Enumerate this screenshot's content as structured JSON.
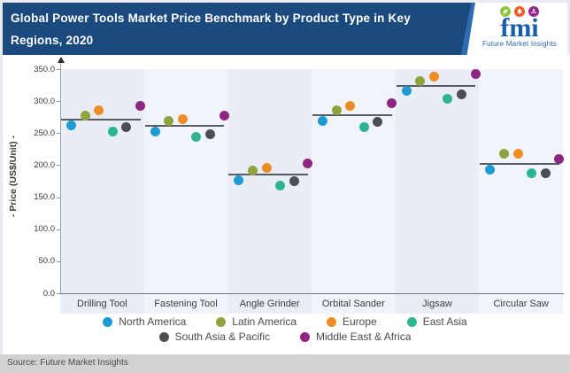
{
  "header": {
    "title": "Global Power Tools Market Price Benchmark by Product Type in Key Regions, 2020"
  },
  "logo": {
    "text": "fmi",
    "subtext": "Future Market Insights",
    "icon_colors": {
      "leaf": "#8dc63f",
      "bell": "#f15a29",
      "person": "#92278f"
    }
  },
  "source": {
    "label": "Source: Future Market Insights"
  },
  "colors": {
    "header_bg": "#1b4a7e",
    "accent_stripe": "#2d6cb5",
    "source_bar_bg": "#d2d2d2",
    "benchmark_line": "#595d63",
    "band_odd": "#e9edf5",
    "band_even": "#f1f4fa"
  },
  "chart_data": {
    "type": "scatter",
    "title": "Global Power Tools Market Price Benchmark by Product Type in Key Regions, 2020",
    "xlabel": "",
    "ylabel": "- Price (US$/Unit) -",
    "ylim": [
      0,
      350
    ],
    "ytick_labels": [
      "0.0",
      "50.0",
      "100.0",
      "150.0",
      "200.0",
      "250.0",
      "300.0",
      "350.0"
    ],
    "grid": false,
    "legend_position": "bottom",
    "categories": [
      "Drilling Tool",
      "Fastening Tool",
      "Angle Grinder",
      "Orbital Sander",
      "Jigsaw",
      "Circular Saw"
    ],
    "series": [
      {
        "name": "North America",
        "color": "#1f9bd4",
        "values": [
          262,
          253,
          177,
          269,
          316,
          193
        ]
      },
      {
        "name": "Latin America",
        "color": "#8fa440",
        "values": [
          278,
          269,
          191,
          285,
          332,
          218
        ]
      },
      {
        "name": "Europe",
        "color": "#ee8d25",
        "values": [
          285,
          272,
          196,
          292,
          338,
          218
        ]
      },
      {
        "name": "East Asia",
        "color": "#2eb394",
        "values": [
          252,
          244,
          168,
          259,
          304,
          187
        ]
      },
      {
        "name": "South Asia & Pacific",
        "color": "#4c4d55",
        "values": [
          259,
          249,
          175,
          267,
          310,
          188
        ]
      },
      {
        "name": "Middle East & Africa",
        "color": "#8e2583",
        "values": [
          292,
          278,
          203,
          297,
          343,
          209
        ]
      }
    ],
    "benchmark_lines": [
      271,
      261,
      185,
      278,
      324,
      202
    ]
  }
}
